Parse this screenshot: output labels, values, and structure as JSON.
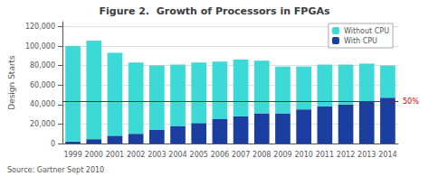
{
  "chart_data": {
    "type": "bar",
    "title": "Figure 2.  Growth of Processors in FPGAs",
    "ylabel": "Design Starts",
    "source": "Source: Gartner Sept 2010",
    "categories": [
      "1999",
      "2000",
      "2001",
      "2002",
      "2003",
      "2004",
      "2005",
      "2006",
      "2007",
      "2008",
      "2009",
      "2010",
      "2011",
      "2012",
      "2013",
      "2014"
    ],
    "series": [
      {
        "name": "With CPU",
        "color": "#1a3fa0",
        "values": [
          2000,
          4500,
          8000,
          10000,
          14000,
          18000,
          21000,
          25000,
          28000,
          31000,
          31000,
          35000,
          38000,
          40000,
          43000,
          47000
        ]
      },
      {
        "name": "Without CPU",
        "color": "#3dd9d6",
        "values": [
          98000,
          101000,
          85000,
          73000,
          66000,
          63000,
          62000,
          59000,
          58000,
          54000,
          48000,
          44000,
          43000,
          41000,
          39000,
          33000
        ]
      }
    ],
    "stacked": true,
    "annotations": [
      {
        "text": "50%",
        "y": 43000,
        "color": "#cc0000"
      }
    ],
    "ylim": [
      0,
      125000
    ],
    "yticks": [
      0,
      {
        "value": 20000,
        "label": "20,000"
      },
      {
        "value": 40000,
        "label": "40,000"
      },
      {
        "value": 60000,
        "label": "60,000"
      },
      {
        "value": 80000,
        "label": "80,000"
      },
      {
        "value": 100000,
        "label": "100,000"
      },
      {
        "value": 120000,
        "label": "120,000"
      }
    ],
    "grid": true,
    "legend": "upper right"
  }
}
